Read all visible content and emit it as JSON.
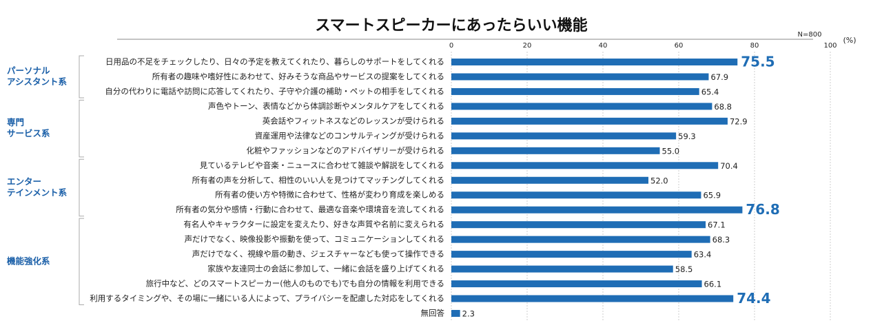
{
  "chart_data": {
    "type": "bar",
    "title": "スマートスピーカーにあったらいい機能",
    "note": "N=800",
    "unit": "(%)",
    "xlim": [
      0,
      100
    ],
    "xticks": [
      0,
      20,
      40,
      60,
      80,
      100
    ],
    "grid": true,
    "color": "#1f6db5",
    "groups": [
      {
        "label": [
          "パーソナル",
          "アシスタント系"
        ],
        "categories": [
          "日用品の不足をチェックしたり、日々の予定を教えてくれたり、暮らしのサポートをしてくれる",
          "所有者の趣味や嗜好性にあわせて、好みそうな商品やサービスの提案をしてくれる",
          "自分の代わりに電話や訪問に応答してくれたり、子守や介護の補助・ペットの相手をしてくれる"
        ],
        "values": [
          75.5,
          67.9,
          65.4
        ],
        "value_labels": [
          "75.5",
          "67.9",
          "65.4"
        ]
      },
      {
        "label": [
          "専門",
          "サービス系"
        ],
        "categories": [
          "声色やトーン、表情などから体調診断やメンタルケアをしてくれる",
          "英会話やフィットネスなどのレッスンが受けられる",
          "資産運用や法律などのコンサルティングが受けられる",
          "化粧やファッションなどのアドバイザリーが受けられる"
        ],
        "values": [
          68.8,
          72.9,
          59.3,
          55.0
        ],
        "value_labels": [
          "68.8",
          "72.9",
          "59.3",
          "55.0"
        ]
      },
      {
        "label": [
          "エンター",
          "テインメント系"
        ],
        "categories": [
          "見ているテレビや音楽・ニュースに合わせて雑談や解説をしてくれる",
          "所有者の声を分析して、相性のいい人を見つけてマッチングしてくれる",
          "所有者の使い方や特徴に合わせて、性格が変わり育成を楽しめる",
          "所有者の気分や感情・行動に合わせて、最適な音楽や環境音を流してくれる"
        ],
        "values": [
          70.4,
          52.0,
          65.9,
          76.8
        ],
        "value_labels": [
          "70.4",
          "52.0",
          "65.9",
          "76.8"
        ]
      },
      {
        "label": [
          "機能強化系"
        ],
        "categories": [
          "有名人やキャラクターに設定を変えたり、好きな声質や名前に変えられる",
          "声だけでなく、映像投影や振動を使って、コミュニケーションしてくれる",
          "声だけでなく、視線や唇の動き、ジェスチャーなども使って操作できる",
          "家族や友達同士の会話に参加して、一緒に会話を盛り上げてくれる",
          "旅行中など、どのスマートスピーカー(他人のものでも)でも自分の情報を利用できる",
          "利用するタイミングや、その場に一緒にいる人によって、プライバシーを配慮した対応をしてくれる"
        ],
        "values": [
          67.1,
          68.3,
          63.4,
          58.5,
          66.1,
          74.4
        ],
        "value_labels": [
          "67.1",
          "68.3",
          "63.4",
          "58.5",
          "66.1",
          "74.4"
        ]
      },
      {
        "label": null,
        "categories": [
          "無回答"
        ],
        "values": [
          2.3
        ],
        "value_labels": [
          "2.3"
        ]
      }
    ]
  }
}
